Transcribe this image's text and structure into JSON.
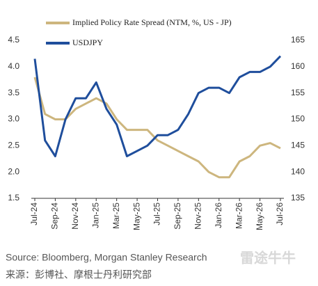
{
  "chart_data": {
    "type": "line",
    "categories": [
      "Jul-24",
      null,
      "Sep-24",
      null,
      "Nov-24",
      null,
      "Jan-25",
      null,
      "Mar-25",
      null,
      "May-25",
      null,
      "Jul-25",
      null,
      "Sep-25",
      null,
      "Nov-25",
      null,
      "Jan-26",
      null,
      "Mar-26",
      null,
      "May-26",
      null,
      "Jul-26"
    ],
    "series": [
      {
        "name": "Implied Policy Rate Spread (NTM, %, US - JP)",
        "color": "#cdb67e",
        "values": [
          3.8,
          3.1,
          3.0,
          3.0,
          3.2,
          3.3,
          3.4,
          3.3,
          3.0,
          2.8,
          2.8,
          2.8,
          2.6,
          2.5,
          2.4,
          2.3,
          2.2,
          2.0,
          1.9,
          1.9,
          2.2,
          2.3,
          2.5,
          2.55,
          2.45
        ]
      },
      {
        "name": "USDJPY",
        "color": "#1f4e9c",
        "axis": "y2",
        "values": [
          161.5,
          146,
          143,
          150,
          154,
          154,
          157,
          152,
          149,
          143,
          144,
          145,
          147,
          147,
          148,
          151,
          155,
          156,
          156,
          155,
          158,
          159,
          159,
          160,
          162
        ]
      }
    ],
    "ylim": [
      1.5,
      4.5
    ],
    "yticks": [
      1.5,
      {
        "value": 2,
        "label": "2.0"
      },
      2.5,
      {
        "value": 3,
        "label": "3.0"
      },
      3.5,
      {
        "value": 4,
        "label": "4.0"
      },
      4.5
    ],
    "y2lim": [
      135,
      165
    ],
    "y2ticks": [
      135,
      140,
      145,
      150,
      155,
      160,
      165
    ],
    "grid": false,
    "legend": "top-left",
    "source": "Source: Bloomberg, Morgan Stanley Research",
    "source_cn": "来源：彭博社、摩根士丹利研究部",
    "watermark": "雷途牛牛"
  }
}
